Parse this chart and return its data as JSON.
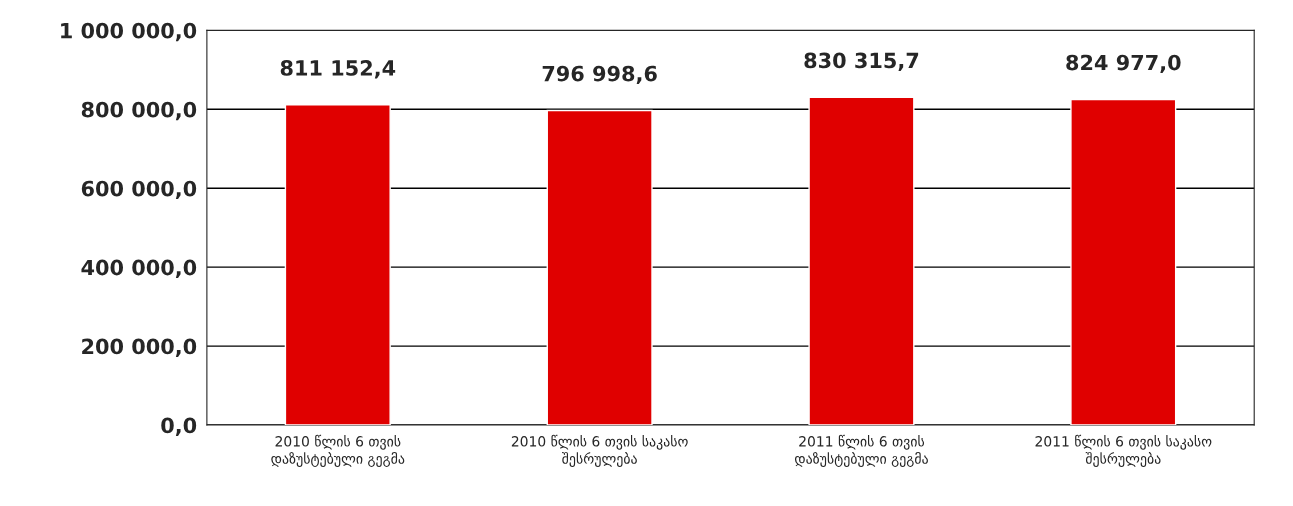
{
  "chart_data": {
    "type": "bar",
    "categories": [
      "2010 წლის 6 თვის\nდაზუსტებული გეგმა",
      "2010 წლის 6 თვის საკასო\nშესრულება",
      "2011 წლის 6 თვის\nდაზუსტებული გეგმა",
      "2011 წლის 6 თვის საკასო\nშესრულება"
    ],
    "values": [
      811152.4,
      796998.6,
      830315.7,
      824977.0
    ],
    "value_labels": [
      "811 152,4",
      "796 998,6",
      "830 315,7",
      "824 977,0"
    ],
    "color": "#e00000",
    "ylim": [
      0,
      1000000
    ],
    "yticks": [
      {
        "value": 0,
        "label": "0,0"
      },
      {
        "value": 200000,
        "label": "200 000,0"
      },
      {
        "value": 400000,
        "label": "400 000,0"
      },
      {
        "value": 600000,
        "label": "600 000,0"
      },
      {
        "value": 800000,
        "label": "800 000,0"
      },
      {
        "value": 1000000,
        "label": "1 000 000,0"
      }
    ],
    "grid": "y"
  }
}
